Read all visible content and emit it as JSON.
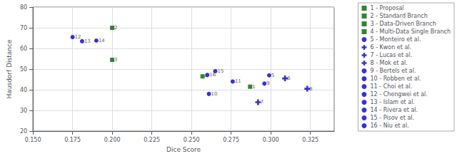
{
  "chart_data": {
    "type": "scatter",
    "xlabel": "Dice Score",
    "ylabel": "Hausdorf Distance",
    "xlim": [
      0.15,
      0.34
    ],
    "ylim": [
      20,
      80
    ],
    "xticks": [
      {
        "value": 0.15,
        "label": "0.150"
      },
      0.175,
      {
        "value": 0.2,
        "label": "0.200"
      },
      0.225,
      {
        "value": 0.25,
        "label": "0.250"
      },
      0.275,
      {
        "value": 0.3,
        "label": "0.300"
      },
      0.325
    ],
    "yticks": [
      20,
      30,
      40,
      50,
      60,
      70,
      80
    ],
    "grid": true,
    "legend": "right",
    "series": [
      {
        "name": "1 - Proposal",
        "color": "#006400",
        "marker": "square",
        "x": [
          0.287
        ],
        "values": [
          41.5
        ]
      },
      {
        "name": "2 - Standard Branch",
        "color": "#006400",
        "marker": "square",
        "x": [
          0.2
        ],
        "values": [
          70.0
        ]
      },
      {
        "name": "3 - Data-Driven Branch",
        "color": "#006400",
        "marker": "square",
        "x": [
          0.2
        ],
        "values": [
          54.5
        ]
      },
      {
        "name": "4 - Multi-Data Single Branch",
        "color": "#006400",
        "marker": "square",
        "x": [
          0.257
        ],
        "values": [
          46.5
        ]
      },
      {
        "name": "5 - Monteiro et al.",
        "color": "#0000CC",
        "marker": "circle",
        "x": [
          0.299
        ],
        "values": [
          47.0
        ]
      },
      {
        "name": "6 - Kwon et al.",
        "color": "#0000CC",
        "marker": "plus",
        "x": [
          0.309
        ],
        "values": [
          45.5
        ]
      },
      {
        "name": "7 - Lucas et al.",
        "color": "#0000CC",
        "marker": "plus",
        "x": [
          0.292
        ],
        "values": [
          34.0
        ]
      },
      {
        "name": "8 - Mok et al.",
        "color": "#0000CC",
        "marker": "plus",
        "x": [
          0.323
        ],
        "values": [
          40.5
        ]
      },
      {
        "name": "9 - Bertels et al.",
        "color": "#0000CC",
        "marker": "circle",
        "x": [
          0.296
        ],
        "values": [
          43.0
        ]
      },
      {
        "name": "10 - Robben et al.",
        "color": "#0000CC",
        "marker": "circle",
        "x": [
          0.261
        ],
        "values": [
          38.0
        ]
      },
      {
        "name": "11 - Choi et al.",
        "color": "#0000CC",
        "marker": "circle",
        "x": [
          0.276
        ],
        "values": [
          44.0
        ]
      },
      {
        "name": "12 - Chengwei et al.",
        "color": "#0000CC",
        "marker": "circle",
        "x": [
          0.175
        ],
        "values": [
          65.5
        ]
      },
      {
        "name": "13 - Islam et al.",
        "color": "#0000CC",
        "marker": "circle",
        "x": [
          0.181
        ],
        "values": [
          63.5
        ]
      },
      {
        "name": "14 - Rivera et al.",
        "color": "#0000CC",
        "marker": "circle",
        "x": [
          0.19
        ],
        "values": [
          63.8
        ]
      },
      {
        "name": "15 - Pisov et al.",
        "color": "#0000CC",
        "marker": "circle",
        "x": [
          0.265
        ],
        "values": [
          49.0
        ]
      },
      {
        "name": "16 - Niu et al.",
        "color": "#0000CC",
        "marker": "circle",
        "x": [
          0.26
        ],
        "values": [
          47.2
        ]
      }
    ],
    "annotations": [
      {
        "text": "1",
        "x": 0.287,
        "y": 41.5
      },
      {
        "text": "2",
        "x": 0.2,
        "y": 70.0
      },
      {
        "text": "3",
        "x": 0.2,
        "y": 54.5
      },
      {
        "text": "4",
        "x": 0.257,
        "y": 46.5
      },
      {
        "text": "5",
        "x": 0.299,
        "y": 47.0
      },
      {
        "text": "6",
        "x": 0.309,
        "y": 45.5
      },
      {
        "text": "7",
        "x": 0.292,
        "y": 34.0
      },
      {
        "text": "8",
        "x": 0.323,
        "y": 40.5
      },
      {
        "text": "9",
        "x": 0.296,
        "y": 43.0
      },
      {
        "text": "10",
        "x": 0.261,
        "y": 38.0
      },
      {
        "text": "11",
        "x": 0.276,
        "y": 44.0
      },
      {
        "text": "12",
        "x": 0.175,
        "y": 65.5
      },
      {
        "text": "13",
        "x": 0.181,
        "y": 63.5
      },
      {
        "text": "14",
        "x": 0.19,
        "y": 63.8
      },
      {
        "text": "15",
        "x": 0.265,
        "y": 49.0
      },
      {
        "text": "16",
        "x": 0.26,
        "y": 47.2
      }
    ]
  }
}
